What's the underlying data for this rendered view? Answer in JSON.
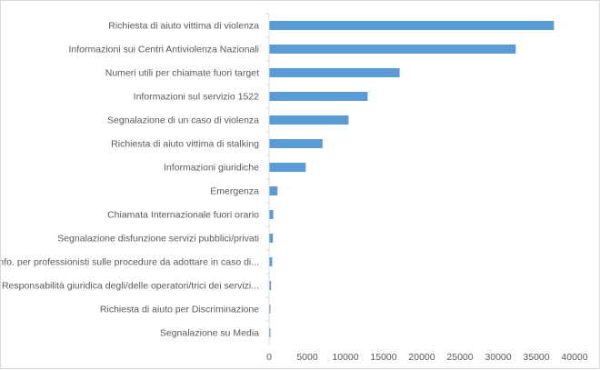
{
  "chart_data": {
    "type": "bar",
    "orientation": "horizontal",
    "categories": [
      "Richiesta di aiuto vittima di violenza",
      "Informazioni sui Centri Antiviolenza Nazionali",
      "Numeri utili per chiamate fuori target",
      "Informazioni sul servizio 1522",
      "Segnalazione di un caso di violenza",
      "Richiesta di aiuto vittima di stalking",
      "Informazioni giuridiche",
      "Emergenza",
      "Chiamata Internazionale fuori orario",
      "Segnalazione disfunzione servizi pubblici/privati",
      "Info. per professionisti sulle procedure da adottare in caso di...",
      "Responsabilità giuridica degli/delle operatori/trici dei servizi...",
      "Richiesta di aiuto per Discriminazione",
      "Segnalazione su Media"
    ],
    "values": [
      37300,
      32300,
      17100,
      12900,
      10400,
      7000,
      4800,
      1100,
      550,
      500,
      400,
      250,
      80,
      60
    ],
    "xlim": [
      0,
      40000
    ],
    "xticks": [
      "0",
      "5000",
      "10000",
      "15000",
      "20000",
      "25000",
      "30000",
      "35000",
      "40000"
    ],
    "grid": false,
    "legend": "none",
    "bar_color": "#5b9bd5",
    "axis_color": "#d9d9d9"
  }
}
